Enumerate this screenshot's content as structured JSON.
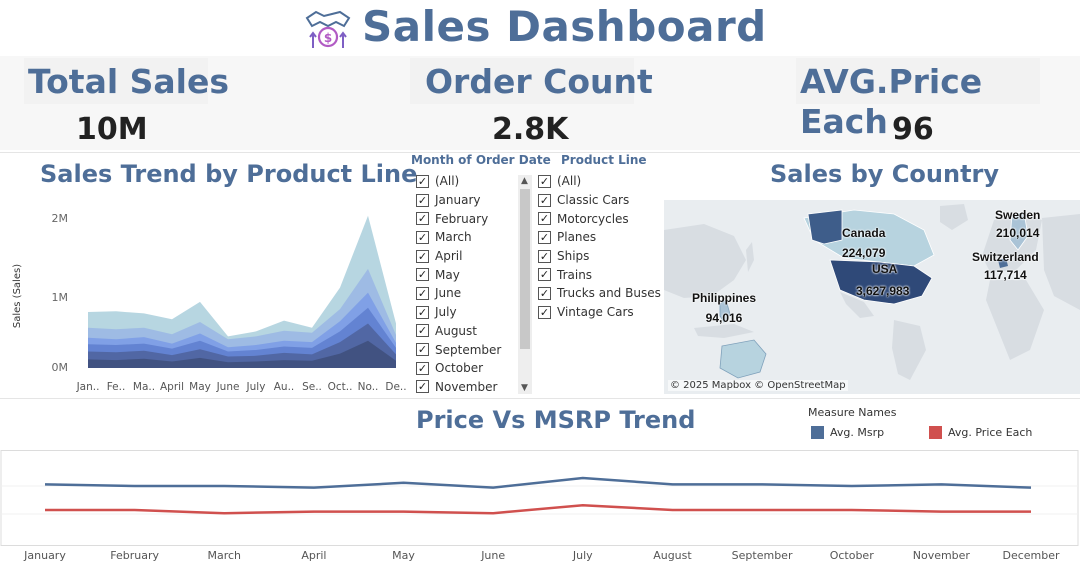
{
  "header": {
    "title": "Sales Dashboard",
    "logo_icon": "handshake-money-icon"
  },
  "kpis": [
    {
      "label": "Total Sales",
      "value": "10M"
    },
    {
      "label": "Order Count",
      "value": "2.8K"
    },
    {
      "label": "AVG.Price Each",
      "value": "96"
    }
  ],
  "sales_trend": {
    "title": "Sales Trend by Product Line",
    "ylabel": "Sales (Sales)",
    "y_ticks": [
      "2M",
      "1M",
      "0M"
    ],
    "x_ticks": [
      "Jan..",
      "Fe..",
      "Ma..",
      "April",
      "May",
      "June",
      "July",
      "Au..",
      "Se..",
      "Oct..",
      "No..",
      "De.."
    ],
    "colors": [
      "#aacfdc",
      "#9bbbe3",
      "#7a9fe5",
      "#5a79c8",
      "#4a5e9c",
      "#3d4f7f"
    ]
  },
  "month_filter": {
    "title": "Month of Order Date",
    "items": [
      "(All)",
      "January",
      "February",
      "March",
      "April",
      "May",
      "June",
      "July",
      "August",
      "September",
      "October",
      "November"
    ]
  },
  "product_filter": {
    "title": "Product Line",
    "items": [
      "(All)",
      "Classic Cars",
      "Motorcycles",
      "Planes",
      "Ships",
      "Trains",
      "Trucks and Buses",
      "Vintage Cars"
    ]
  },
  "country_map": {
    "title": "Sales by Country",
    "credit": "© 2025 Mapbox © OpenStreetMap",
    "labels": [
      {
        "country": "Canada",
        "value": "224,079"
      },
      {
        "country": "USA",
        "value": "3,627,983"
      },
      {
        "country": "Sweden",
        "value": "210,014"
      },
      {
        "country": "Switzerland",
        "value": "117,714"
      },
      {
        "country": "Philippines",
        "value": "94,016"
      }
    ]
  },
  "price_trend": {
    "title": "Price Vs MSRP Trend",
    "legend_title": "Measure Names",
    "legend": [
      {
        "name": "Avg. Msrp",
        "color": "#4e6e98"
      },
      {
        "name": "Avg. Price Each",
        "color": "#d0504e"
      }
    ],
    "months": [
      "January",
      "February",
      "March",
      "April",
      "May",
      "June",
      "July",
      "August",
      "September",
      "October",
      "November",
      "December"
    ]
  },
  "chart_data": [
    {
      "type": "area",
      "title": "Sales Trend by Product Line",
      "ylabel": "Sales (Sales)",
      "categories": [
        "Jan",
        "Feb",
        "Mar",
        "Apr",
        "May",
        "Jun",
        "Jul",
        "Aug",
        "Sep",
        "Oct",
        "Nov",
        "Dec"
      ],
      "ylim": [
        0,
        2200000
      ],
      "stacked_totals": [
        [
          120000,
          110000,
          130000,
          90000,
          140000,
          80000,
          90000,
          110000,
          100000,
          200000,
          380000,
          100000
        ],
        [
          230000,
          220000,
          240000,
          180000,
          260000,
          160000,
          170000,
          210000,
          190000,
          360000,
          620000,
          190000
        ],
        [
          330000,
          320000,
          340000,
          270000,
          380000,
          230000,
          250000,
          300000,
          280000,
          510000,
          840000,
          280000
        ],
        [
          420000,
          400000,
          430000,
          340000,
          480000,
          290000,
          320000,
          380000,
          360000,
          650000,
          1050000,
          350000
        ],
        [
          560000,
          540000,
          560000,
          470000,
          640000,
          400000,
          440000,
          520000,
          490000,
          820000,
          1380000,
          460000
        ],
        [
          780000,
          790000,
          760000,
          680000,
          920000,
          440000,
          510000,
          660000,
          560000,
          1120000,
          2120000,
          620000
        ]
      ]
    },
    {
      "type": "line",
      "title": "Price Vs MSRP Trend",
      "categories": [
        "January",
        "February",
        "March",
        "April",
        "May",
        "June",
        "July",
        "August",
        "September",
        "October",
        "November",
        "December"
      ],
      "ylim": [
        0,
        130
      ],
      "series": [
        {
          "name": "Avg. Msrp",
          "values": [
            101,
            100,
            100,
            99,
            102,
            99,
            105,
            101,
            101,
            100,
            101,
            99
          ]
        },
        {
          "name": "Avg. Price Each",
          "values": [
            85,
            85,
            83,
            84,
            84,
            83,
            88,
            85,
            85,
            85,
            84,
            84
          ]
        }
      ]
    }
  ]
}
